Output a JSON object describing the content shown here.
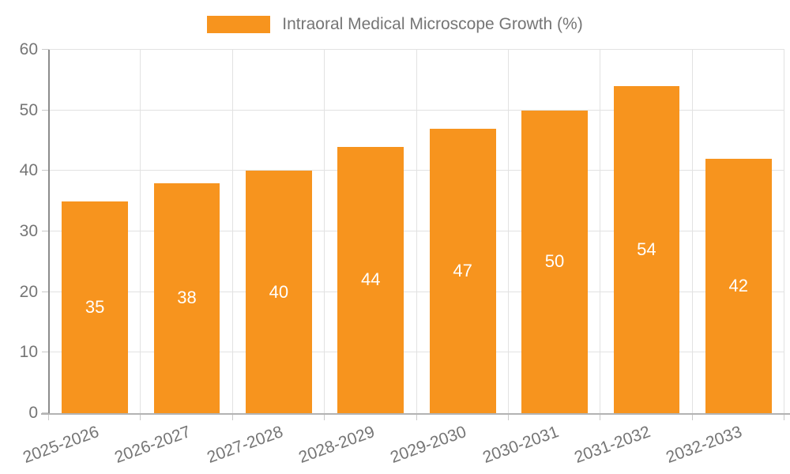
{
  "legend": {
    "label": "Intraoral Medical Microscope Growth (%)"
  },
  "chart_data": {
    "type": "bar",
    "title": "",
    "series_name": "Intraoral Medical Microscope Growth (%)",
    "categories": [
      "2025-2026",
      "2026-2027",
      "2027-2028",
      "2028-2029",
      "2029-2030",
      "2030-2031",
      "2031-2032",
      "2032-2033"
    ],
    "values": [
      35,
      38,
      40,
      44,
      47,
      50,
      54,
      42
    ],
    "xlabel": "",
    "ylabel": "",
    "ylim": [
      0,
      60
    ],
    "yticks": [
      0,
      10,
      20,
      30,
      40,
      50,
      60
    ],
    "grid": true,
    "legend_position": "top",
    "bar_color": "#F7941E",
    "bar_value_label_color": "#FFFFFF",
    "axis_text_color": "#757575",
    "gridline_color": "#e2e2e2",
    "x_label_rotation_deg": -20
  }
}
